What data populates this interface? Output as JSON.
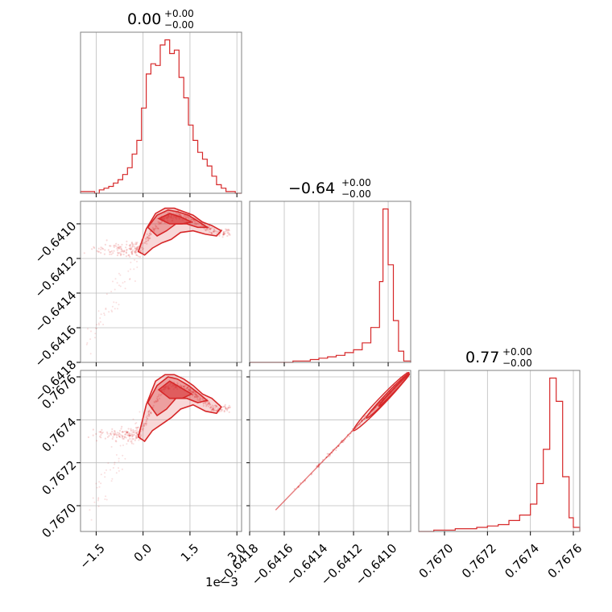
{
  "chart_data": {
    "type": "corner",
    "color": "#d62728",
    "grid": true,
    "offset_label": "1e−3",
    "diagonal": [
      {
        "title_value": "0.00",
        "title_plus": "+0.00",
        "title_minus": "−0.00",
        "xlim": [
          -2.0,
          3.15
        ],
        "ticks": [
          -1.5,
          0.0,
          1.5,
          3.0
        ],
        "tick_labels": [
          "−1.5",
          "0.0",
          "1.5",
          "3.0"
        ],
        "bin_edges": [
          -2.0,
          -1.85,
          -1.7,
          -1.55,
          -1.4,
          -1.25,
          -1.1,
          -0.95,
          -0.8,
          -0.65,
          -0.5,
          -0.35,
          -0.2,
          -0.05,
          0.1,
          0.25,
          0.4,
          0.55,
          0.7,
          0.85,
          1.0,
          1.15,
          1.3,
          1.45,
          1.6,
          1.75,
          1.9,
          2.05,
          2.2,
          2.35,
          2.5,
          2.65,
          2.8,
          2.95,
          3.15
        ],
        "counts": [
          1,
          1,
          1,
          0,
          2,
          3,
          4,
          6,
          8,
          11,
          15,
          23,
          31,
          50,
          70,
          76,
          75,
          87,
          90,
          82,
          84,
          68,
          56,
          40,
          31,
          24,
          20,
          16,
          10,
          5,
          3,
          1,
          1,
          0
        ]
      },
      {
        "title_value": "−0.64",
        "title_plus": "+0.00",
        "title_minus": "−0.00",
        "xlim": [
          -0.6418,
          -0.64087
        ],
        "ticks": [
          -0.6418,
          -0.6416,
          -0.6414,
          -0.6412,
          -0.641
        ],
        "tick_labels": [
          "−0.6418",
          "−0.6416",
          "−0.6414",
          "−0.6412",
          "−0.6410"
        ],
        "bin_edges": [
          -0.6418,
          -0.64175,
          -0.6417,
          -0.64165,
          -0.6416,
          -0.64155,
          -0.6415,
          -0.64145,
          -0.6414,
          -0.64135,
          -0.6413,
          -0.64125,
          -0.6412,
          -0.64115,
          -0.6411,
          -0.64105,
          -0.64103,
          -0.641,
          -0.64097,
          -0.64094,
          -0.64091,
          -0.64087
        ],
        "counts": [
          0,
          0,
          0,
          0,
          0,
          1,
          1,
          2,
          3,
          4,
          5,
          7,
          9,
          14,
          25,
          58,
          110,
          70,
          30,
          8,
          1
        ]
      },
      {
        "title_value": "0.77",
        "title_plus": "+0.00",
        "title_minus": "−0.00",
        "xlim": [
          0.76688,
          0.76763
        ],
        "ticks": [
          0.767,
          0.7672,
          0.7674,
          0.7676
        ],
        "tick_labels": [
          "0.7670",
          "0.7672",
          "0.7674",
          "0.7676"
        ],
        "bin_edges": [
          0.76688,
          0.76695,
          0.767,
          0.76705,
          0.7671,
          0.76715,
          0.7672,
          0.76725,
          0.7673,
          0.76735,
          0.7674,
          0.76743,
          0.76746,
          0.76749,
          0.76752,
          0.76755,
          0.76758,
          0.7676,
          0.76763
        ],
        "counts": [
          0,
          1,
          1,
          2,
          2,
          3,
          4,
          5,
          8,
          12,
          20,
          35,
          60,
          112,
          95,
          40,
          10,
          3
        ]
      }
    ],
    "lower": [
      {
        "row": 1,
        "col": 0,
        "ylim": [
          -0.6418,
          -0.64087
        ],
        "yticks": [
          -0.641,
          -0.6412,
          -0.6414,
          -0.6416,
          -0.6418
        ],
        "ytick_labels": [
          "−0.6410",
          "−0.6412",
          "−0.6414",
          "−0.6416",
          "−0.6418"
        ],
        "ridge_x": [
          -0.1,
          0.3,
          0.7,
          1.1,
          1.5,
          1.9,
          2.3
        ],
        "ridge_y": [
          -0.64115,
          -0.64104,
          -0.64096,
          -0.64095,
          -0.64097,
          -0.64101,
          -0.64105
        ],
        "contours": [
          {
            "x": [
              -0.15,
              0.1,
              0.4,
              0.7,
              1.0,
              1.3,
              1.6,
              1.9,
              2.2,
              2.5,
              2.35,
              2.0,
              1.6,
              1.2,
              0.9,
              0.6,
              0.3,
              0.05,
              -0.15
            ],
            "y": [
              -0.64116,
              -0.64103,
              -0.64094,
              -0.64091,
              -0.64091,
              -0.64093,
              -0.64095,
              -0.64099,
              -0.64101,
              -0.64104,
              -0.64107,
              -0.64106,
              -0.64104,
              -0.64105,
              -0.64109,
              -0.64111,
              -0.64114,
              -0.64118,
              -0.64116
            ]
          },
          {
            "x": [
              0.15,
              0.45,
              0.8,
              1.1,
              1.45,
              1.8,
              2.05,
              1.75,
              1.4,
              1.05,
              0.75,
              0.45,
              0.15
            ],
            "y": [
              -0.64102,
              -0.64095,
              -0.64092,
              -0.64093,
              -0.64095,
              -0.64099,
              -0.64102,
              -0.64102,
              -0.641,
              -0.641,
              -0.64104,
              -0.64107,
              -0.64102
            ]
          },
          {
            "x": [
              0.5,
              0.85,
              1.2,
              1.55,
              1.25,
              0.85,
              0.5
            ],
            "y": [
              -0.64097,
              -0.64094,
              -0.64096,
              -0.64099,
              -0.641,
              -0.641,
              -0.64097
            ]
          }
        ]
      },
      {
        "row": 2,
        "col": 0,
        "ylim": [
          0.76688,
          0.76763
        ],
        "yticks": [
          0.7676,
          0.7674,
          0.7672,
          0.767
        ],
        "ytick_labels": [
          "0.7676",
          "0.7674",
          "0.7672",
          "0.7670"
        ],
        "ridge_x": [
          -0.1,
          0.3,
          0.7,
          1.1,
          1.5,
          1.9,
          2.3
        ],
        "ridge_y": [
          0.76733,
          0.76746,
          0.76755,
          0.76756,
          0.76754,
          0.76749,
          0.76745
        ],
        "contours": [
          {
            "x": [
              -0.15,
              0.1,
              0.4,
              0.7,
              1.0,
              1.3,
              1.6,
              1.9,
              2.2,
              2.5,
              2.35,
              2.0,
              1.6,
              1.2,
              0.9,
              0.6,
              0.3,
              0.05,
              -0.15
            ],
            "y": [
              0.76732,
              0.76747,
              0.76758,
              0.76761,
              0.76761,
              0.76759,
              0.76756,
              0.76752,
              0.7675,
              0.76746,
              0.76743,
              0.76744,
              0.76747,
              0.76745,
              0.76741,
              0.76738,
              0.76735,
              0.7673,
              0.76732
            ]
          },
          {
            "x": [
              0.15,
              0.45,
              0.8,
              1.1,
              1.45,
              1.8,
              2.05,
              1.75,
              1.4,
              1.05,
              0.75,
              0.45,
              0.15
            ],
            "y": [
              0.76748,
              0.76756,
              0.7676,
              0.76759,
              0.76756,
              0.76752,
              0.76749,
              0.76748,
              0.7675,
              0.7675,
              0.76745,
              0.76742,
              0.76748
            ]
          },
          {
            "x": [
              0.5,
              0.85,
              1.2,
              1.55,
              1.25,
              0.85,
              0.5
            ],
            "y": [
              0.76754,
              0.76758,
              0.76755,
              0.76752,
              0.7675,
              0.7675,
              0.76754
            ]
          }
        ]
      },
      {
        "row": 2,
        "col": 1,
        "line_x": [
          -0.64165,
          -0.64088
        ],
        "line_y": [
          0.76698,
          0.76762
        ],
        "ellipse_start": [
          -0.6412,
          0.76735
        ],
        "ellipse_end": [
          -0.64088,
          0.76762
        ]
      }
    ]
  }
}
